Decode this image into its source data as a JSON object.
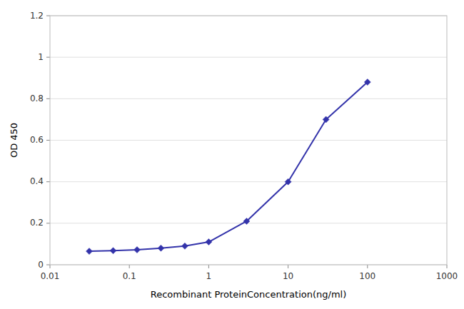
{
  "chart_data": {
    "type": "line",
    "x_label": "Recombinant ProteinConcentration(ng/ml)",
    "y_label": "OD 450",
    "x": [
      0.03125,
      0.0625,
      0.125,
      0.25,
      0.5,
      1.0,
      3.0,
      10.0,
      30.0,
      100.0
    ],
    "values": [
      0.065,
      0.068,
      0.072,
      0.08,
      0.09,
      0.11,
      0.21,
      0.4,
      0.7,
      0.88
    ],
    "color": "#3333aa",
    "marker": "diamond",
    "log": "x",
    "xlim": [
      0.01,
      1000
    ],
    "ylim": [
      0,
      1.2
    ],
    "xticks": [
      0.01,
      0.1,
      1,
      10,
      100,
      1000
    ],
    "yticks": [
      0,
      0.2,
      0.4,
      0.6,
      0.8,
      1,
      1.2
    ],
    "grid": true
  }
}
